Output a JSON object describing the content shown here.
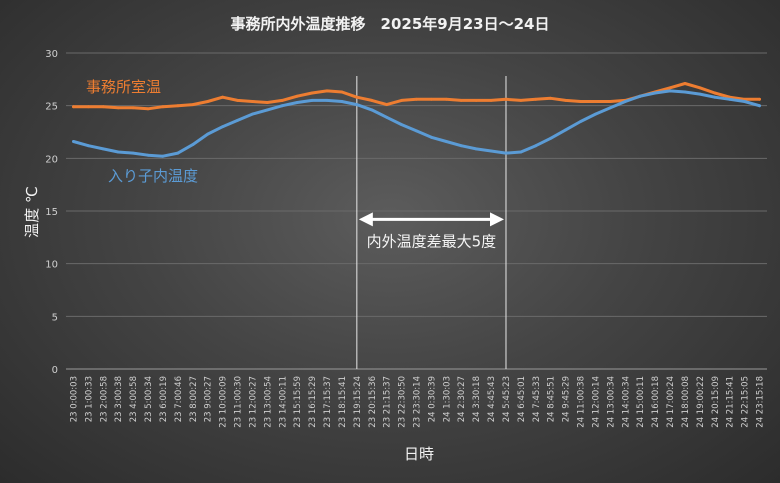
{
  "chart_data": {
    "type": "line",
    "title": "事務所内外温度推移　2025年9月23日～24日",
    "xlabel": "日時",
    "ylabel": "温度 ℃",
    "ylim": [
      0,
      30
    ],
    "yticks": [
      0,
      5,
      10,
      15,
      20,
      25,
      30
    ],
    "grid": true,
    "legend": "inline labels",
    "x": [
      "23 0:00:03",
      "23 1:00:33",
      "23 2:00:58",
      "23 3:00:38",
      "23 4:00:58",
      "23 5:00:34",
      "23 6:00:19",
      "23 7:00:46",
      "23 8:00:27",
      "23 9:00:27",
      "23 10:00:09",
      "23 11:00:30",
      "23 12:00:27",
      "23 13:00:54",
      "23 14:00:11",
      "23 15:15:59",
      "23 16:15:29",
      "23 17:15:37",
      "23 18:15:41",
      "23 19:15:24",
      "23 20:15:36",
      "23 21:15:37",
      "23 22:30:50",
      "23 23:30:14",
      "24 0:30:39",
      "24 1:30:03",
      "24 2:30:27",
      "24 3:30:18",
      "24 4:45:43",
      "24 5:45:23",
      "24 6:45:01",
      "24 7:45:33",
      "24 8:45:51",
      "24 9:45:29",
      "24 11:00:38",
      "24 12:00:14",
      "24 13:00:34",
      "24 14:00:34",
      "24 15:00:11",
      "24 16:00:18",
      "24 17:00:24",
      "24 18:00:08",
      "24 19:00:22",
      "24 20:15:09",
      "24 21:15:41",
      "24 22:15:05",
      "24 23:15:18"
    ],
    "series": [
      {
        "name": "事務所室温",
        "color": "#ed7d31",
        "values": [
          24.9,
          24.9,
          24.9,
          24.8,
          24.8,
          24.7,
          24.9,
          25.0,
          25.1,
          25.4,
          25.8,
          25.5,
          25.4,
          25.3,
          25.5,
          25.9,
          26.2,
          26.4,
          26.3,
          25.8,
          25.5,
          25.1,
          25.5,
          25.6,
          25.6,
          25.6,
          25.5,
          25.5,
          25.5,
          25.6,
          25.5,
          25.6,
          25.7,
          25.5,
          25.4,
          25.4,
          25.4,
          25.5,
          25.9,
          26.3,
          26.7,
          27.1,
          26.7,
          26.2,
          25.8,
          25.6,
          25.6
        ]
      },
      {
        "name": "入り子内温度",
        "color": "#5b9bd5",
        "values": [
          21.6,
          21.2,
          20.9,
          20.6,
          20.5,
          20.3,
          20.2,
          20.5,
          21.3,
          22.3,
          23.0,
          23.6,
          24.2,
          24.6,
          25.0,
          25.3,
          25.5,
          25.5,
          25.4,
          25.1,
          24.6,
          23.9,
          23.2,
          22.6,
          22.0,
          21.6,
          21.2,
          20.9,
          20.7,
          20.5,
          20.6,
          21.2,
          21.9,
          22.7,
          23.5,
          24.2,
          24.8,
          25.4,
          25.9,
          26.2,
          26.4,
          26.3,
          26.1,
          25.8,
          25.6,
          25.4,
          25.0
        ]
      }
    ],
    "annotation": {
      "text": "内外温度差最大5度",
      "from_x": "23 19:15:24",
      "to_x": "24 5:45:23",
      "y": 14.2
    }
  }
}
